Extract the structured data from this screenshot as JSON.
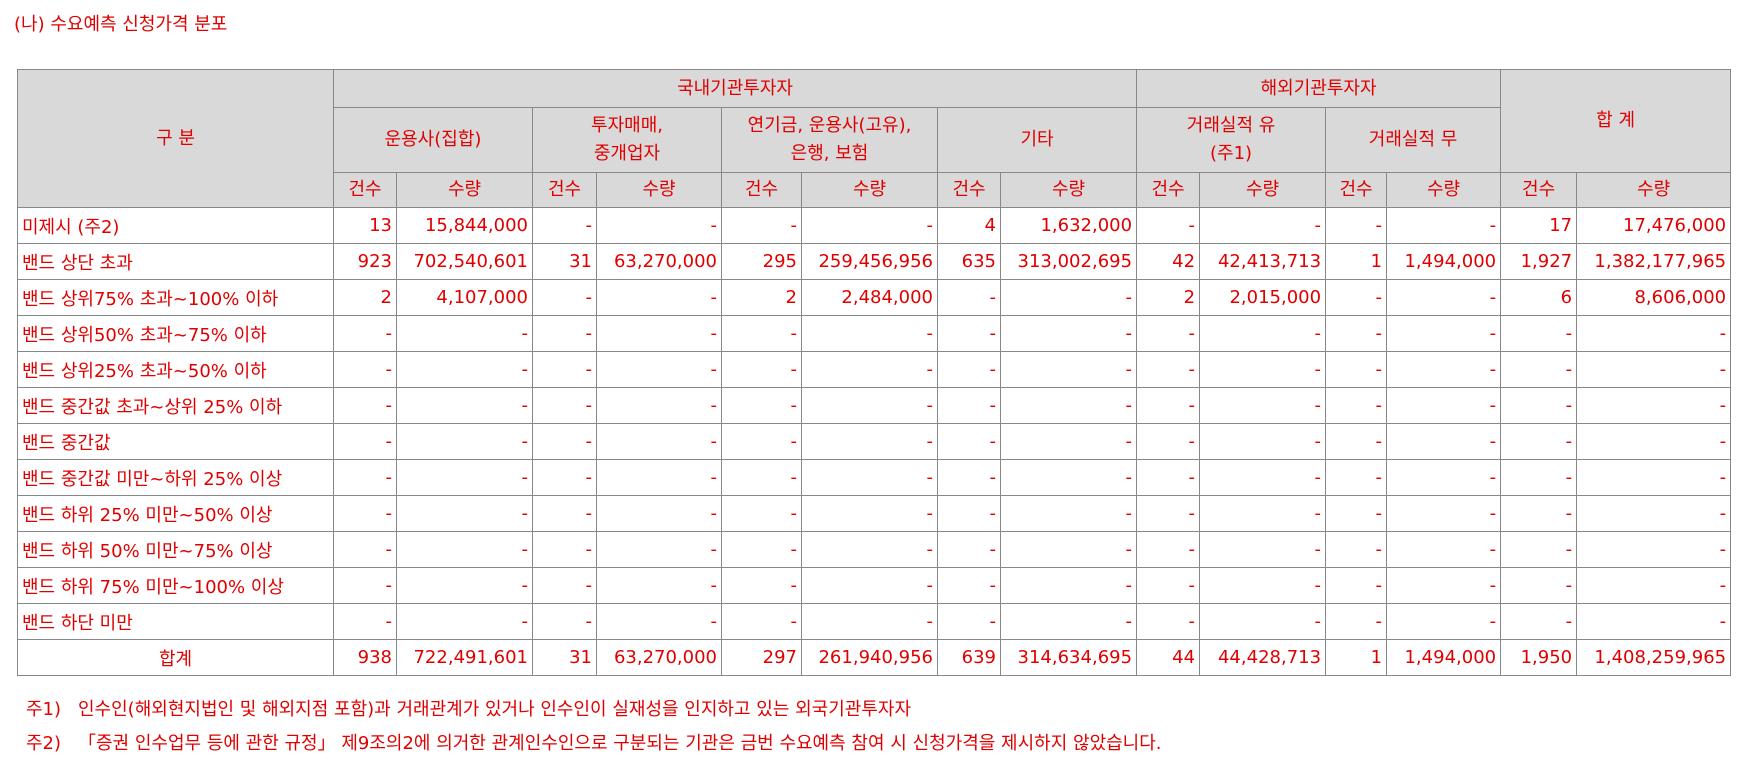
{
  "title": "(나) 수요예측 신청가격 분포",
  "table": {
    "corner": "구 분",
    "groups": [
      "국내기관투자자",
      "해외기관투자자",
      "합 계"
    ],
    "subgroups": [
      "운용사(집합)",
      "투자매매,\n중개업자",
      "연기금, 운용사(고유),\n은행, 보험",
      "기타",
      "거래실적 유\n(주1)",
      "거래실적 무"
    ],
    "columns": [
      "건수",
      "수량",
      "건수",
      "수량",
      "건수",
      "수량",
      "건수",
      "수량",
      "건수",
      "수량",
      "건수",
      "수량",
      "건수",
      "수량"
    ],
    "rows": [
      [
        "미제시 (주2)",
        "13",
        "15,844,000",
        "-",
        "-",
        "-",
        "-",
        "4",
        "1,632,000",
        "-",
        "-",
        "-",
        "-",
        "17",
        "17,476,000"
      ],
      [
        "밴드 상단 초과",
        "923",
        "702,540,601",
        "31",
        "63,270,000",
        "295",
        "259,456,956",
        "635",
        "313,002,695",
        "42",
        "42,413,713",
        "1",
        "1,494,000",
        "1,927",
        "1,382,177,965"
      ],
      [
        "밴드 상위75% 초과~100% 이하",
        "2",
        "4,107,000",
        "-",
        "-",
        "2",
        "2,484,000",
        "-",
        "-",
        "2",
        "2,015,000",
        "-",
        "-",
        "6",
        "8,606,000"
      ],
      [
        "밴드 상위50% 초과~75% 이하",
        "-",
        "-",
        "-",
        "-",
        "-",
        "-",
        "-",
        "-",
        "-",
        "-",
        "-",
        "-",
        "-",
        "-"
      ],
      [
        "밴드 상위25% 초과~50% 이하",
        "-",
        "-",
        "-",
        "-",
        "-",
        "-",
        "-",
        "-",
        "-",
        "-",
        "-",
        "-",
        "-",
        "-"
      ],
      [
        "밴드 중간값 초과~상위 25% 이하",
        "-",
        "-",
        "-",
        "-",
        "-",
        "-",
        "-",
        "-",
        "-",
        "-",
        "-",
        "-",
        "-",
        "-"
      ],
      [
        "밴드 중간값",
        "-",
        "-",
        "-",
        "-",
        "-",
        "-",
        "-",
        "-",
        "-",
        "-",
        "-",
        "-",
        "-",
        "-"
      ],
      [
        "밴드 중간값 미만~하위 25% 이상",
        "-",
        "-",
        "-",
        "-",
        "-",
        "-",
        "-",
        "-",
        "-",
        "-",
        "-",
        "-",
        "-",
        "-"
      ],
      [
        "밴드 하위 25% 미만~50% 이상",
        "-",
        "-",
        "-",
        "-",
        "-",
        "-",
        "-",
        "-",
        "-",
        "-",
        "-",
        "-",
        "-",
        "-"
      ],
      [
        "밴드 하위 50% 미만~75% 이상",
        "-",
        "-",
        "-",
        "-",
        "-",
        "-",
        "-",
        "-",
        "-",
        "-",
        "-",
        "-",
        "-",
        "-"
      ],
      [
        "밴드 하위 75% 미만~100% 이상",
        "-",
        "-",
        "-",
        "-",
        "-",
        "-",
        "-",
        "-",
        "-",
        "-",
        "-",
        "-",
        "-",
        "-"
      ],
      [
        "밴드 하단 미만",
        "-",
        "-",
        "-",
        "-",
        "-",
        "-",
        "-",
        "-",
        "-",
        "-",
        "-",
        "-",
        "-",
        "-"
      ]
    ],
    "total": [
      "합계",
      "938",
      "722,491,601",
      "31",
      "63,270,000",
      "297",
      "261,940,956",
      "639",
      "314,634,695",
      "44",
      "44,428,713",
      "1",
      "1,494,000",
      "1,950",
      "1,408,259,965"
    ]
  },
  "notes": [
    {
      "label": "주1)",
      "text": "인수인(해외현지법인 및 해외지점 포함)과 거래관계가 있거나 인수인이 실재성을 인지하고 있는 외국기관투자자"
    },
    {
      "label": "주2)",
      "text": "「증권 인수업무 등에 관한 규정」 제9조의2에 의거한 관계인수인으로 구분되는 기관은 금번 수요예측 참여 시 신청가격을 제시하지 않았습니다."
    }
  ]
}
